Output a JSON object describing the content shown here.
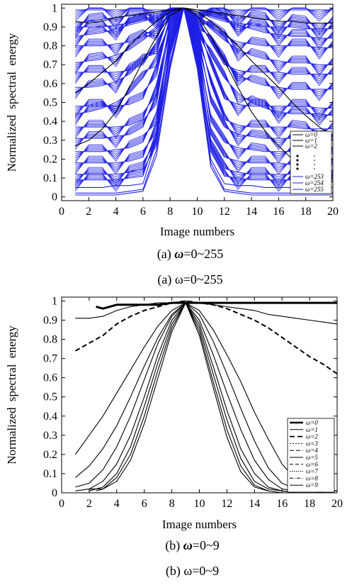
{
  "charts": [
    {
      "id": "a",
      "caption_prefix": "(a) ",
      "caption_var": "ω",
      "caption_range": "=0~255",
      "caption_repeat": "(a) ω=0~255"
    },
    {
      "id": "b",
      "caption_prefix": "(b) ",
      "caption_var": "ω",
      "caption_range": "=0~9",
      "caption_repeat": "(b) ω=0~9"
    }
  ],
  "chart_data": [
    {
      "type": "line",
      "xlabel": "Image numbers",
      "ylabel": "Normalized spectral energy",
      "xlim": [
        0,
        20
      ],
      "ylim": [
        -0.02,
        1.02
      ],
      "xticks": [
        0,
        2,
        4,
        6,
        8,
        10,
        12,
        14,
        16,
        18,
        20
      ],
      "yticks": [
        0,
        0.1,
        0.2,
        0.3,
        0.4,
        0.5,
        0.6,
        0.7,
        0.8,
        0.9,
        1
      ],
      "x": [
        1,
        2,
        3,
        4,
        5,
        6,
        7,
        8,
        9,
        10,
        11,
        12,
        13,
        14,
        15,
        16,
        17,
        18,
        19,
        20
      ],
      "legend": {
        "position": "bottom-right",
        "entries": [
          "ω=0",
          "ω=1",
          "ω=2",
          "ω=253",
          "ω=254",
          "ω=255"
        ],
        "ellipsis": true
      },
      "series_note_colors": {
        "low_frequency": "#000000",
        "high_frequency": "#1f1fe6"
      },
      "series": [
        {
          "name": "ω=0",
          "color": "#000000",
          "values": [
            0.93,
            0.92,
            0.93,
            0.95,
            0.96,
            0.97,
            0.98,
            0.99,
            1.0,
            0.99,
            0.98,
            0.97,
            0.96,
            0.95,
            0.94,
            0.93,
            0.93,
            0.92,
            0.92,
            0.92
          ]
        },
        {
          "name": "ω=1",
          "color": "#000000",
          "values": [
            0.55,
            0.6,
            0.66,
            0.72,
            0.8,
            0.87,
            0.93,
            0.98,
            1.0,
            0.98,
            0.93,
            0.87,
            0.8,
            0.72,
            0.65,
            0.58,
            0.5,
            0.43,
            0.37,
            0.32
          ]
        },
        {
          "name": "ω=2",
          "color": "#000000",
          "values": [
            0.27,
            0.3,
            0.36,
            0.45,
            0.58,
            0.72,
            0.85,
            0.96,
            1.0,
            0.96,
            0.85,
            0.72,
            0.58,
            0.45,
            0.35,
            0.27,
            0.2,
            0.15,
            0.11,
            0.08
          ]
        },
        {
          "name": "ω=253",
          "color": "#1f1fe6",
          "values": [
            0.05,
            0.05,
            0.05,
            0.06,
            0.06,
            0.07,
            0.3,
            0.72,
            1.0,
            0.72,
            0.2,
            0.07,
            0.06,
            0.06,
            0.05,
            0.05,
            0.05,
            0.05,
            0.05,
            0.05
          ]
        },
        {
          "name": "ω=254",
          "color": "#1f1fe6",
          "values": [
            0.02,
            0.02,
            0.02,
            0.02,
            0.03,
            0.04,
            0.25,
            0.7,
            1.0,
            0.7,
            0.18,
            0.04,
            0.03,
            0.02,
            0.02,
            0.02,
            0.02,
            0.02,
            0.02,
            0.02
          ]
        },
        {
          "name": "ω=255",
          "color": "#1f1fe6",
          "values": [
            0.01,
            0.01,
            0.01,
            0.01,
            0.02,
            0.03,
            0.22,
            0.68,
            1.0,
            0.68,
            0.16,
            0.03,
            0.02,
            0.01,
            0.01,
            0.01,
            0.01,
            0.01,
            0.01,
            0.01
          ]
        }
      ],
      "band_series": [
        {
          "color": "#1f1fe6",
          "values": [
            0.92,
            0.93,
            0.94,
            0.95,
            0.96,
            0.96,
            0.97,
            0.99,
            1.0,
            0.99,
            0.97,
            0.96,
            0.96,
            0.95,
            0.94,
            0.93,
            0.93,
            0.92,
            0.92,
            0.92
          ]
        },
        {
          "color": "#1f1fe6",
          "values": [
            0.85,
            0.86,
            0.87,
            0.89,
            0.91,
            0.93,
            0.95,
            0.98,
            1.0,
            0.98,
            0.95,
            0.93,
            0.91,
            0.89,
            0.87,
            0.86,
            0.85,
            0.85,
            0.84,
            0.84
          ]
        },
        {
          "color": "#1f1fe6",
          "values": [
            0.8,
            0.8,
            0.8,
            0.81,
            0.82,
            0.85,
            0.9,
            0.97,
            1.0,
            0.97,
            0.9,
            0.85,
            0.82,
            0.81,
            0.8,
            0.8,
            0.8,
            0.8,
            0.79,
            0.79
          ]
        },
        {
          "color": "#1f1fe6",
          "values": [
            0.71,
            0.72,
            0.73,
            0.75,
            0.78,
            0.83,
            0.89,
            0.96,
            1.0,
            0.96,
            0.89,
            0.83,
            0.78,
            0.75,
            0.73,
            0.72,
            0.71,
            0.71,
            0.7,
            0.7
          ]
        },
        {
          "color": "#1f1fe6",
          "values": [
            0.66,
            0.66,
            0.66,
            0.66,
            0.67,
            0.7,
            0.82,
            0.95,
            1.0,
            0.95,
            0.82,
            0.7,
            0.67,
            0.66,
            0.66,
            0.66,
            0.65,
            0.65,
            0.65,
            0.65
          ]
        },
        {
          "color": "#1f1fe6",
          "values": [
            0.58,
            0.58,
            0.59,
            0.61,
            0.65,
            0.72,
            0.82,
            0.95,
            1.0,
            0.95,
            0.82,
            0.72,
            0.65,
            0.61,
            0.59,
            0.58,
            0.57,
            0.57,
            0.57,
            0.57
          ]
        },
        {
          "color": "#1f1fe6",
          "values": [
            0.48,
            0.48,
            0.48,
            0.48,
            0.49,
            0.52,
            0.7,
            0.93,
            1.0,
            0.93,
            0.7,
            0.52,
            0.49,
            0.48,
            0.48,
            0.48,
            0.48,
            0.48,
            0.47,
            0.47
          ]
        },
        {
          "color": "#1f1fe6",
          "values": [
            0.44,
            0.45,
            0.47,
            0.5,
            0.55,
            0.63,
            0.75,
            0.92,
            1.0,
            0.92,
            0.75,
            0.63,
            0.55,
            0.5,
            0.47,
            0.45,
            0.44,
            0.44,
            0.44,
            0.43
          ]
        },
        {
          "color": "#1f1fe6",
          "values": [
            0.37,
            0.37,
            0.37,
            0.37,
            0.38,
            0.41,
            0.6,
            0.9,
            1.0,
            0.9,
            0.6,
            0.41,
            0.38,
            0.37,
            0.37,
            0.37,
            0.37,
            0.36,
            0.36,
            0.36
          ]
        },
        {
          "color": "#1f1fe6",
          "values": [
            0.31,
            0.31,
            0.31,
            0.32,
            0.33,
            0.37,
            0.55,
            0.88,
            1.0,
            0.88,
            0.5,
            0.37,
            0.33,
            0.32,
            0.31,
            0.31,
            0.31,
            0.31,
            0.3,
            0.3
          ]
        },
        {
          "color": "#1f1fe6",
          "values": [
            0.24,
            0.24,
            0.24,
            0.25,
            0.26,
            0.29,
            0.45,
            0.85,
            1.0,
            0.85,
            0.4,
            0.29,
            0.26,
            0.25,
            0.24,
            0.24,
            0.24,
            0.24,
            0.23,
            0.23
          ]
        },
        {
          "color": "#1f1fe6",
          "values": [
            0.18,
            0.18,
            0.18,
            0.18,
            0.19,
            0.21,
            0.4,
            0.82,
            1.0,
            0.82,
            0.33,
            0.21,
            0.19,
            0.18,
            0.18,
            0.18,
            0.17,
            0.17,
            0.17,
            0.17
          ]
        },
        {
          "color": "#1f1fe6",
          "values": [
            0.12,
            0.12,
            0.12,
            0.12,
            0.13,
            0.15,
            0.35,
            0.78,
            1.0,
            0.78,
            0.27,
            0.15,
            0.13,
            0.12,
            0.12,
            0.12,
            0.12,
            0.12,
            0.11,
            0.11
          ]
        },
        {
          "color": "#1f1fe6",
          "values": [
            0.09,
            0.09,
            0.09,
            0.09,
            0.1,
            0.11,
            0.33,
            0.75,
            1.0,
            0.75,
            0.24,
            0.11,
            0.1,
            0.09,
            0.09,
            0.09,
            0.09,
            0.09,
            0.09,
            0.09
          ]
        },
        {
          "color": "#1f1fe6",
          "values": [
            0.99,
            0.99,
            0.99,
            0.99,
            0.99,
            0.99,
            0.99,
            0.99,
            1.0,
            0.99,
            0.99,
            0.99,
            0.99,
            0.99,
            0.99,
            0.99,
            0.99,
            0.99,
            0.99,
            0.99
          ]
        },
        {
          "color": "#1f1fe6",
          "values": [
            0.9,
            0.9,
            0.9,
            0.91,
            0.92,
            0.94,
            0.96,
            0.98,
            1.0,
            0.98,
            0.96,
            0.94,
            0.92,
            0.91,
            0.9,
            0.9,
            0.9,
            0.89,
            0.89,
            0.89
          ]
        }
      ]
    },
    {
      "type": "line",
      "xlabel": "Image numbers",
      "ylabel": "Normalized spectral energy",
      "xlim": [
        0,
        20
      ],
      "ylim": [
        0,
        1.02
      ],
      "xticks": [
        0,
        2,
        4,
        6,
        8,
        10,
        12,
        14,
        16,
        18,
        20
      ],
      "yticks": [
        0,
        0.1,
        0.2,
        0.3,
        0.4,
        0.5,
        0.6,
        0.7,
        0.8,
        0.9,
        1
      ],
      "legend": {
        "position": "bottom-right",
        "entries": [
          "ω=0",
          "ω=1",
          "ω=2",
          "ω=3",
          "ω=4",
          "ω=5",
          "ω=6",
          "ω=7",
          "ω=8",
          "ω=9"
        ]
      },
      "series": [
        {
          "name": "ω=0",
          "style": "thick",
          "x": [
            2.5,
            3,
            4,
            5,
            6,
            7,
            8,
            9,
            10,
            11,
            12,
            13,
            14,
            15,
            16,
            17,
            18,
            19,
            20
          ],
          "values": [
            0.97,
            0.96,
            0.98,
            0.98,
            0.98,
            0.98,
            0.99,
            0.99,
            0.99,
            0.99,
            0.99,
            0.99,
            0.99,
            0.99,
            0.99,
            0.99,
            0.99,
            0.99,
            0.99
          ]
        },
        {
          "name": "ω=1",
          "style": "thin",
          "x": [
            1,
            2,
            3,
            4,
            5,
            6,
            7,
            8,
            9,
            10,
            11,
            12,
            13,
            14,
            15,
            16,
            17,
            18,
            19,
            20
          ],
          "values": [
            0.91,
            0.91,
            0.92,
            0.95,
            0.97,
            0.98,
            0.99,
            0.99,
            1.0,
            0.99,
            0.98,
            0.97,
            0.96,
            0.95,
            0.93,
            0.92,
            0.91,
            0.9,
            0.89,
            0.88
          ]
        },
        {
          "name": "ω=2",
          "style": "dashed",
          "x": [
            1,
            2,
            3,
            4,
            5,
            6,
            7,
            8,
            9,
            10,
            11,
            12,
            13,
            14,
            15,
            16,
            17,
            18,
            19,
            20
          ],
          "values": [
            0.74,
            0.78,
            0.82,
            0.88,
            0.92,
            0.95,
            0.97,
            0.99,
            1.0,
            0.99,
            0.98,
            0.96,
            0.93,
            0.9,
            0.86,
            0.81,
            0.76,
            0.71,
            0.67,
            0.62
          ]
        },
        {
          "name": "ω=3",
          "style": "thin",
          "x": [
            1,
            2,
            3,
            4,
            5,
            6,
            7,
            8,
            9,
            10,
            11,
            12,
            13,
            14,
            15,
            16,
            17,
            18,
            19,
            20
          ],
          "values": [
            0.2,
            0.3,
            0.4,
            0.52,
            0.64,
            0.76,
            0.87,
            0.95,
            0.99,
            0.95,
            0.85,
            0.72,
            0.58,
            0.42,
            0.28,
            0.15,
            0.07,
            0.03,
            0.02,
            0.01
          ]
        },
        {
          "name": "ω=4",
          "style": "thin",
          "x": [
            1,
            2,
            3,
            4,
            5,
            6,
            7,
            8,
            9,
            10,
            11,
            12,
            13,
            14,
            15,
            16,
            17,
            18,
            19,
            20
          ],
          "values": [
            0.08,
            0.14,
            0.23,
            0.35,
            0.5,
            0.66,
            0.81,
            0.93,
            0.99,
            0.93,
            0.79,
            0.62,
            0.44,
            0.27,
            0.13,
            0.05,
            0.02,
            0.01,
            0.01,
            0.01
          ]
        },
        {
          "name": "ω=5",
          "style": "thin",
          "x": [
            1,
            2,
            3,
            4,
            5,
            6,
            7,
            8,
            9,
            10,
            11,
            12,
            13,
            14,
            15,
            16,
            17,
            18,
            19,
            20
          ],
          "values": [
            0.03,
            0.05,
            0.12,
            0.24,
            0.4,
            0.59,
            0.78,
            0.92,
            0.99,
            0.9,
            0.72,
            0.52,
            0.33,
            0.17,
            0.07,
            0.02,
            0.01,
            0.01,
            0.0,
            0.0
          ]
        },
        {
          "name": "ω=6",
          "style": "thin",
          "x": [
            1,
            2,
            3,
            4,
            5,
            6,
            7,
            8,
            9,
            10,
            11,
            12,
            13,
            14,
            15,
            16,
            17,
            18,
            19,
            20
          ],
          "values": [
            0.01,
            0.02,
            0.06,
            0.15,
            0.3,
            0.5,
            0.72,
            0.9,
            0.99,
            0.88,
            0.66,
            0.43,
            0.23,
            0.1,
            0.03,
            0.01,
            0.0,
            0.0,
            0.0,
            0.0
          ]
        },
        {
          "name": "ω=7",
          "style": "thin",
          "x": [
            2,
            3,
            4,
            5,
            6,
            7,
            8,
            9,
            10,
            11,
            12,
            13,
            14,
            15,
            16,
            17
          ],
          "values": [
            0.01,
            0.03,
            0.1,
            0.24,
            0.45,
            0.68,
            0.88,
            0.99,
            0.86,
            0.62,
            0.38,
            0.18,
            0.06,
            0.02,
            0.01,
            0.0
          ]
        },
        {
          "name": "ω=8",
          "style": "thin",
          "x": [
            2,
            3,
            4,
            5,
            6,
            7,
            8,
            9,
            10,
            11,
            12,
            13,
            14,
            15,
            16
          ],
          "values": [
            0.02,
            0.02,
            0.08,
            0.2,
            0.4,
            0.64,
            0.86,
            0.99,
            0.84,
            0.58,
            0.33,
            0.14,
            0.04,
            0.01,
            0.0
          ]
        },
        {
          "name": "ω=9",
          "style": "thin",
          "x": [
            2.5,
            3,
            4,
            5,
            6,
            7,
            8,
            9,
            10,
            11,
            12,
            13,
            14,
            15
          ],
          "values": [
            0.01,
            0.02,
            0.06,
            0.17,
            0.36,
            0.6,
            0.84,
            0.99,
            0.82,
            0.55,
            0.29,
            0.11,
            0.03,
            0.01
          ]
        }
      ]
    }
  ]
}
